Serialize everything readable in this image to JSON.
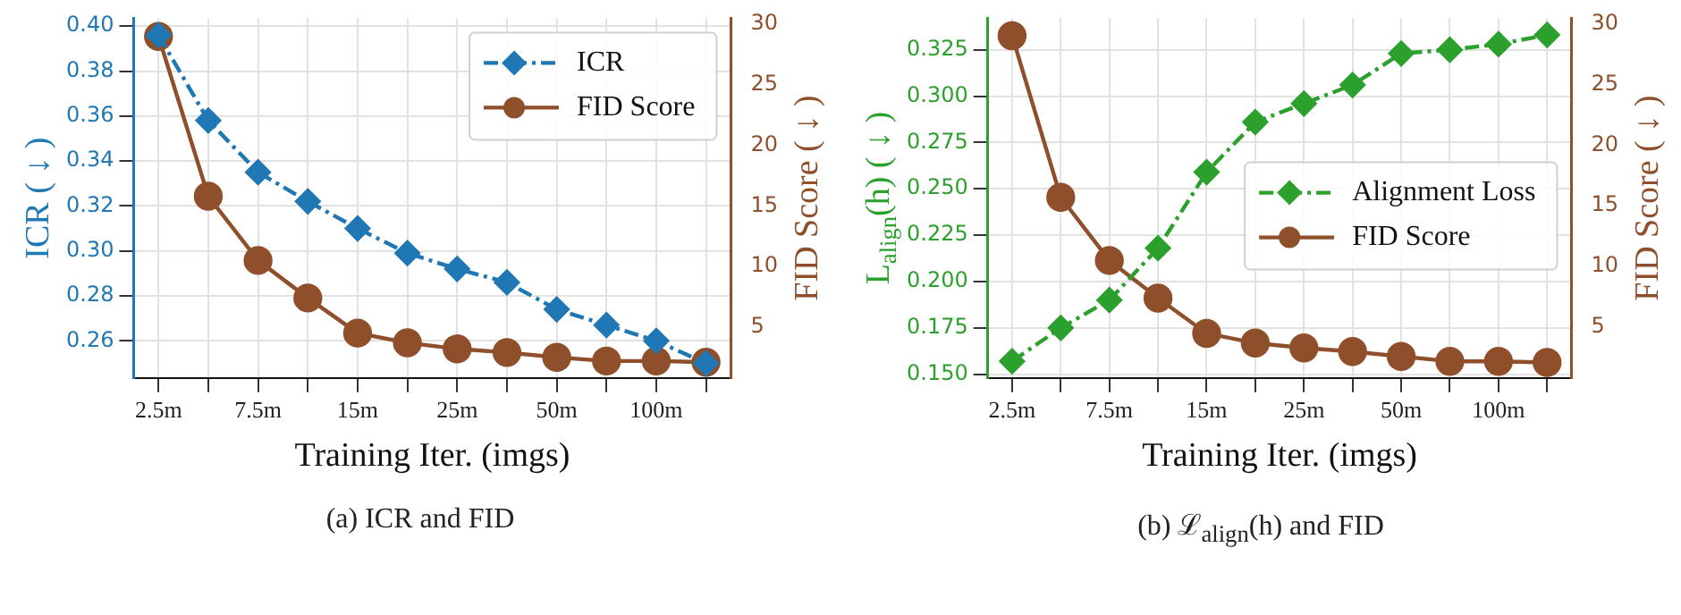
{
  "chart_data": [
    {
      "type": "line",
      "title": "(a) ICR and FID",
      "xlabel": "Training Iter. (imgs)",
      "ylabel": "ICR ( ↓ )",
      "y2label": "FID Score ( ↓ )",
      "categories": [
        "2.5m",
        null,
        "7.5m",
        null,
        "15m",
        null,
        "25m",
        null,
        "50m",
        null,
        "100m",
        null
      ],
      "series": [
        {
          "name": "ICR",
          "color": "#1f77b4",
          "marker": "diamond",
          "line_style": "dashed",
          "values": [
            0.396,
            0.358,
            0.335,
            0.322,
            0.31,
            0.299,
            0.292,
            0.286,
            0.274,
            0.267,
            0.26,
            0.25
          ]
        },
        {
          "name": "FID Score",
          "color": "#8f4f2b",
          "marker": "circle",
          "line_style": "solid",
          "axis": "y2",
          "values": [
            29.0,
            15.8,
            10.5,
            7.4,
            4.5,
            3.7,
            3.2,
            2.9,
            2.5,
            2.2,
            2.2,
            2.1
          ]
        }
      ],
      "ylim": [
        0.2435,
        0.4035
      ],
      "yticks": [
        0.26,
        0.28,
        0.32,
        0.34,
        0.36,
        0.38,
        {
          "value": 0.3,
          "label": "0.30"
        },
        {
          "value": 0.4,
          "label": "0.40"
        }
      ],
      "y2lim": [
        0.8,
        30.5
      ],
      "y2ticks": [
        5,
        10,
        15,
        20,
        25,
        30
      ],
      "grid": true,
      "legend": "top right"
    },
    {
      "type": "line",
      "title": "(b) ℒ$_{align}$(h) and FID",
      "xlabel": "Training Iter. (imgs)",
      "ylabel": "L$_{align}$(h) ( ↓ )",
      "y2label": "FID Score ( ↓ )",
      "categories": [
        "2.5m",
        null,
        "7.5m",
        null,
        "15m",
        null,
        "25m",
        null,
        "50m",
        null,
        "100m",
        null
      ],
      "series": [
        {
          "name": "Alignment Loss",
          "color": "#2ca02c",
          "marker": "diamond",
          "line_style": "dashed",
          "values": [
            0.157,
            0.175,
            0.19,
            0.218,
            0.259,
            0.286,
            0.296,
            0.306,
            0.323,
            0.325,
            0.328,
            0.333
          ]
        },
        {
          "name": "FID Score",
          "color": "#8f4f2b",
          "marker": "circle",
          "line_style": "solid",
          "axis": "y2",
          "values": [
            29.0,
            15.7,
            10.5,
            7.4,
            4.5,
            3.7,
            3.3,
            3.0,
            2.6,
            2.2,
            2.2,
            2.1
          ]
        }
      ],
      "ylim": [
        0.148,
        0.342
      ],
      "yticks": [
        {
          "value": 0.15,
          "label": "0.150"
        },
        0.175,
        {
          "value": 0.2,
          "label": "0.200"
        },
        0.225,
        {
          "value": 0.25,
          "label": "0.250"
        },
        0.275,
        {
          "value": 0.3,
          "label": "0.300"
        },
        0.325
      ],
      "y2lim": [
        0.83,
        30.44
      ],
      "y2ticks": [
        5,
        10,
        15,
        20,
        25,
        30
      ],
      "grid": true,
      "legend": "right"
    }
  ]
}
